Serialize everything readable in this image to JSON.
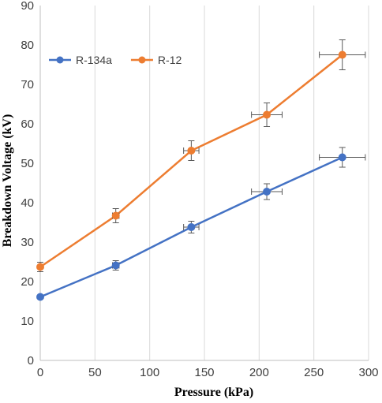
{
  "chart_data": {
    "type": "line",
    "xlabel": "Pressure (kPa)",
    "ylabel": "Breakdown Voltage (kV)",
    "xlim": [
      0,
      300
    ],
    "ylim": [
      0,
      90
    ],
    "xticks": [
      0,
      50,
      100,
      150,
      200,
      250,
      300
    ],
    "yticks": [
      0,
      10,
      20,
      30,
      40,
      50,
      60,
      70,
      80,
      90
    ],
    "grid": "vertical",
    "legend_position": "top-left",
    "series": [
      {
        "name": "R-134a",
        "color": "#4472C4",
        "x": [
          0,
          69,
          138,
          207,
          276
        ],
        "y": [
          16.1,
          24.1,
          33.8,
          42.8,
          51.5
        ],
        "y_err": [
          0.4,
          1.2,
          1.5,
          2.0,
          2.5
        ],
        "x_err": [
          0,
          3,
          7,
          14,
          21
        ]
      },
      {
        "name": "R-12",
        "color": "#ED7D31",
        "x": [
          0,
          69,
          138,
          207,
          276
        ],
        "y": [
          23.7,
          36.7,
          53.2,
          62.3,
          77.5
        ],
        "y_err": [
          1.2,
          1.8,
          2.5,
          3.0,
          3.8
        ],
        "x_err": [
          0,
          3,
          7,
          14,
          21
        ]
      }
    ]
  }
}
